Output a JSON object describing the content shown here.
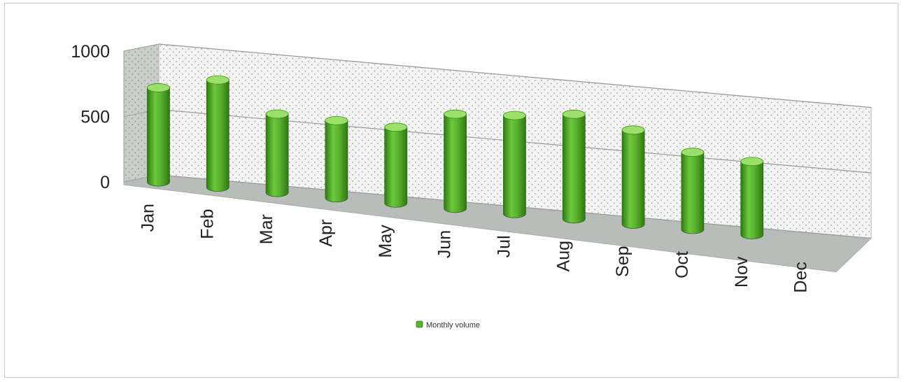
{
  "chart_data": {
    "type": "bar",
    "style": "3d-cylinder",
    "categories": [
      "Jan",
      "Feb",
      "Mar",
      "Apr",
      "May",
      "Jun",
      "Jul",
      "Aug",
      "Sep",
      "Oct",
      "Nov",
      "Dec"
    ],
    "series": [
      {
        "name": "Monthly volume",
        "values": [
          720,
          820,
          600,
          590,
          580,
          720,
          750,
          800,
          720,
          590,
          560,
          null
        ]
      }
    ],
    "title": "",
    "xlabel": "",
    "ylabel": "",
    "ylim": [
      0,
      1000
    ],
    "yticks": [
      "0",
      "500",
      "1000"
    ],
    "grid": true,
    "legend": "bottom-center",
    "colors": {
      "bar": "#5cb32e",
      "bar_dark": "#2f7a14",
      "bar_light": "#9be06a",
      "back_wall": "#f4f4f4",
      "side_wall": "#c9cec9",
      "floor": "#b9bdb9",
      "grid": "#9a9a9a"
    }
  }
}
